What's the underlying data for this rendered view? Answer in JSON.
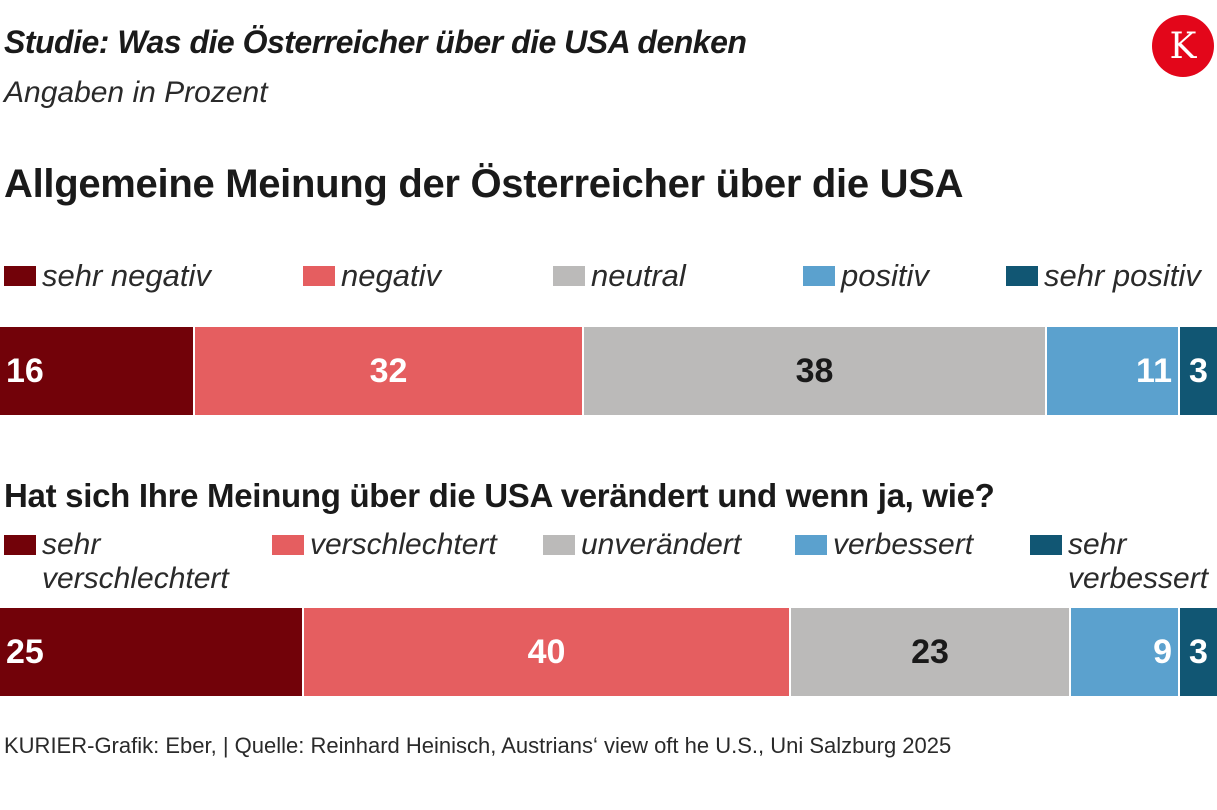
{
  "header": {
    "title": "Studie: Was die Österreicher über die USA denken",
    "subtitle": "Angaben in Prozent",
    "logo_letter": "K"
  },
  "chart_data": [
    {
      "type": "bar",
      "stacked": true,
      "orientation": "horizontal",
      "title": "Allgemeine Meinung der Österreicher über die USA",
      "categories": [
        "sehr negativ",
        "negativ",
        "neutral",
        "positiv",
        "sehr positiv"
      ],
      "values": [
        16,
        32,
        38,
        11,
        3
      ],
      "colors": [
        "#720209",
        "#e55e60",
        "#bbbab9",
        "#5ba1ce",
        "#115673"
      ],
      "text_colors": [
        "#ffffff",
        "#ffffff",
        "#1a1a1a",
        "#ffffff",
        "#ffffff"
      ],
      "label_align": [
        "left",
        "center",
        "center",
        "right",
        "center"
      ],
      "unit": "%"
    },
    {
      "type": "bar",
      "stacked": true,
      "orientation": "horizontal",
      "title": "Hat sich Ihre Meinung über die USA verändert und wenn ja, wie?",
      "categories": [
        "sehr verschlechtert",
        "verschlechtert",
        "unverändert",
        "verbessert",
        "sehr verbessert"
      ],
      "values": [
        25,
        40,
        23,
        9,
        3
      ],
      "colors": [
        "#720209",
        "#e55e60",
        "#bbbab9",
        "#5ba1ce",
        "#115673"
      ],
      "text_colors": [
        "#ffffff",
        "#ffffff",
        "#1a1a1a",
        "#ffffff",
        "#ffffff"
      ],
      "label_align": [
        "left",
        "center",
        "center",
        "right",
        "center"
      ],
      "unit": "%"
    }
  ],
  "legend1": {
    "items": [
      "sehr negativ",
      "negativ",
      "neutral",
      "positiv",
      "sehr positiv"
    ]
  },
  "legend2": {
    "items": [
      "sehr verschlechtert",
      "verschlechtert",
      "unverändert",
      "verbessert",
      "sehr verbessert"
    ]
  },
  "footer": {
    "source": "KURIER-Grafik: Eber, | Quelle: Reinhard Heinisch, Austrians‘ view oft he U.S., Uni Salzburg 2025"
  }
}
